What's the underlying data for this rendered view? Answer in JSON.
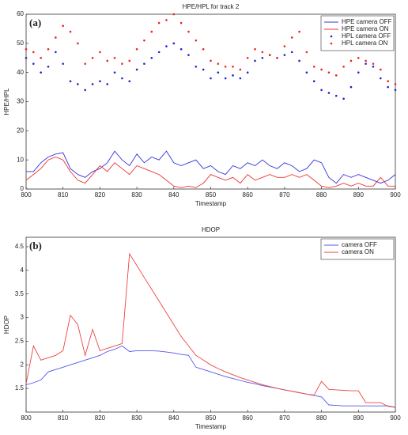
{
  "chart_data": [
    {
      "type": "line",
      "title": "HPE/HPL for track 2",
      "annotation": "(a)",
      "x_label": "Timestamp",
      "y_label": "HPE/HPL",
      "x": [
        800,
        802,
        804,
        806,
        808,
        810,
        812,
        814,
        816,
        818,
        820,
        822,
        824,
        826,
        828,
        830,
        832,
        834,
        836,
        838,
        840,
        842,
        844,
        846,
        848,
        850,
        852,
        854,
        856,
        858,
        860,
        862,
        864,
        866,
        868,
        870,
        872,
        874,
        876,
        878,
        880,
        882,
        884,
        886,
        888,
        890,
        892,
        894,
        896,
        898,
        900
      ],
      "xlim": [
        800,
        900
      ],
      "xticks": [
        800,
        810,
        820,
        830,
        840,
        850,
        860,
        870,
        880,
        890,
        900
      ],
      "ylim": [
        0,
        60
      ],
      "yticks": [
        0,
        10,
        20,
        30,
        40,
        50,
        60
      ],
      "legend": "upper right",
      "series": [
        {
          "name": "HPE camera OFF",
          "color": "#3333dd",
          "style": "line",
          "values": [
            6,
            6,
            9,
            11,
            12,
            12.5,
            7,
            5,
            4,
            6,
            7,
            9,
            13,
            10,
            8,
            12,
            9,
            11,
            10,
            13,
            9,
            8,
            9,
            10,
            7,
            8,
            6,
            5,
            8,
            7,
            9,
            8,
            10,
            8,
            7,
            9,
            8,
            6,
            7,
            10,
            9,
            4,
            2,
            5,
            4,
            5,
            4,
            3,
            2,
            3,
            5
          ]
        },
        {
          "name": "HPE camera ON",
          "color": "#ee3333",
          "style": "line",
          "values": [
            3,
            5,
            7,
            10,
            11,
            10,
            6,
            3,
            2,
            5,
            8,
            6,
            9,
            7,
            5,
            8,
            7,
            6,
            5,
            3,
            1,
            0.5,
            1,
            0.5,
            2,
            5,
            4,
            3,
            4,
            2,
            5,
            3,
            4,
            5,
            4,
            4,
            5,
            4,
            5,
            3,
            1,
            0.5,
            1,
            2,
            1,
            2,
            1,
            1,
            4,
            1,
            1
          ]
        },
        {
          "name": "HPL camera OFF",
          "color": "#2222cc",
          "style": "markers",
          "values": [
            45,
            43,
            40,
            42,
            47,
            43,
            37,
            36,
            34,
            36,
            37,
            36,
            40,
            38,
            37,
            41,
            43,
            45,
            47,
            49,
            50,
            48,
            46,
            42,
            41,
            38,
            40,
            38,
            39,
            38,
            40,
            44,
            45,
            46,
            45,
            46,
            47,
            44,
            40,
            37,
            34,
            33,
            32,
            31,
            35,
            40,
            43,
            42,
            38,
            35,
            34
          ]
        },
        {
          "name": "HPL camera ON",
          "color": "#ee2222",
          "style": "markers",
          "values": [
            48,
            47,
            45,
            48,
            52,
            56,
            54,
            50,
            43,
            45,
            47,
            44,
            45,
            43,
            44,
            48,
            51,
            54,
            57,
            58,
            60,
            57,
            54,
            51,
            48,
            44,
            43,
            42,
            42,
            41,
            45,
            48,
            47,
            46,
            45,
            49,
            52,
            54,
            47,
            42,
            41,
            40,
            39,
            42,
            44,
            45,
            44,
            43,
            41,
            37,
            36
          ]
        }
      ]
    },
    {
      "type": "line",
      "title": "HDOP",
      "annotation": "(b)",
      "x_label": "Timestamp",
      "y_label": "HDOP",
      "x": [
        800,
        802,
        804,
        806,
        808,
        810,
        812,
        814,
        816,
        818,
        820,
        822,
        824,
        826,
        828,
        830,
        832,
        834,
        836,
        838,
        840,
        842,
        844,
        846,
        848,
        850,
        852,
        854,
        856,
        858,
        860,
        862,
        864,
        866,
        868,
        870,
        872,
        874,
        876,
        878,
        880,
        882,
        884,
        886,
        888,
        890,
        892,
        894,
        896,
        898,
        900
      ],
      "xlim": [
        800,
        900
      ],
      "xticks": [
        800,
        810,
        820,
        830,
        840,
        850,
        860,
        870,
        880,
        890,
        900
      ],
      "ylim": [
        1,
        4.7
      ],
      "yticks": [
        1.5,
        2,
        2.5,
        3,
        3.5,
        4,
        4.5
      ],
      "legend": "upper right",
      "series": [
        {
          "name": "camera OFF",
          "color": "#5555ee",
          "style": "line",
          "values": [
            1.58,
            1.62,
            1.68,
            1.85,
            1.9,
            1.95,
            2.0,
            2.05,
            2.1,
            2.15,
            2.2,
            2.28,
            2.33,
            2.4,
            2.28,
            2.3,
            2.3,
            2.3,
            2.29,
            2.27,
            2.25,
            2.22,
            2.2,
            1.95,
            1.9,
            1.85,
            1.8,
            1.75,
            1.71,
            1.67,
            1.63,
            1.6,
            1.56,
            1.53,
            1.5,
            1.47,
            1.44,
            1.41,
            1.38,
            1.35,
            1.32,
            1.15,
            1.14,
            1.13,
            1.13,
            1.13,
            1.13,
            1.13,
            1.13,
            1.13,
            1.1
          ]
        },
        {
          "name": "camera ON",
          "color": "#ee4444",
          "style": "line",
          "values": [
            1.6,
            2.4,
            2.1,
            2.15,
            2.2,
            2.3,
            3.05,
            2.85,
            2.2,
            2.75,
            2.3,
            2.35,
            2.4,
            2.45,
            4.35,
            4.1,
            3.85,
            3.6,
            3.35,
            3.1,
            2.85,
            2.6,
            2.4,
            2.2,
            2.1,
            2.0,
            1.92,
            1.85,
            1.79,
            1.73,
            1.68,
            1.63,
            1.58,
            1.54,
            1.5,
            1.47,
            1.44,
            1.41,
            1.38,
            1.36,
            1.65,
            1.48,
            1.47,
            1.46,
            1.45,
            1.45,
            1.2,
            1.2,
            1.2,
            1.12,
            1.1
          ]
        }
      ]
    }
  ]
}
